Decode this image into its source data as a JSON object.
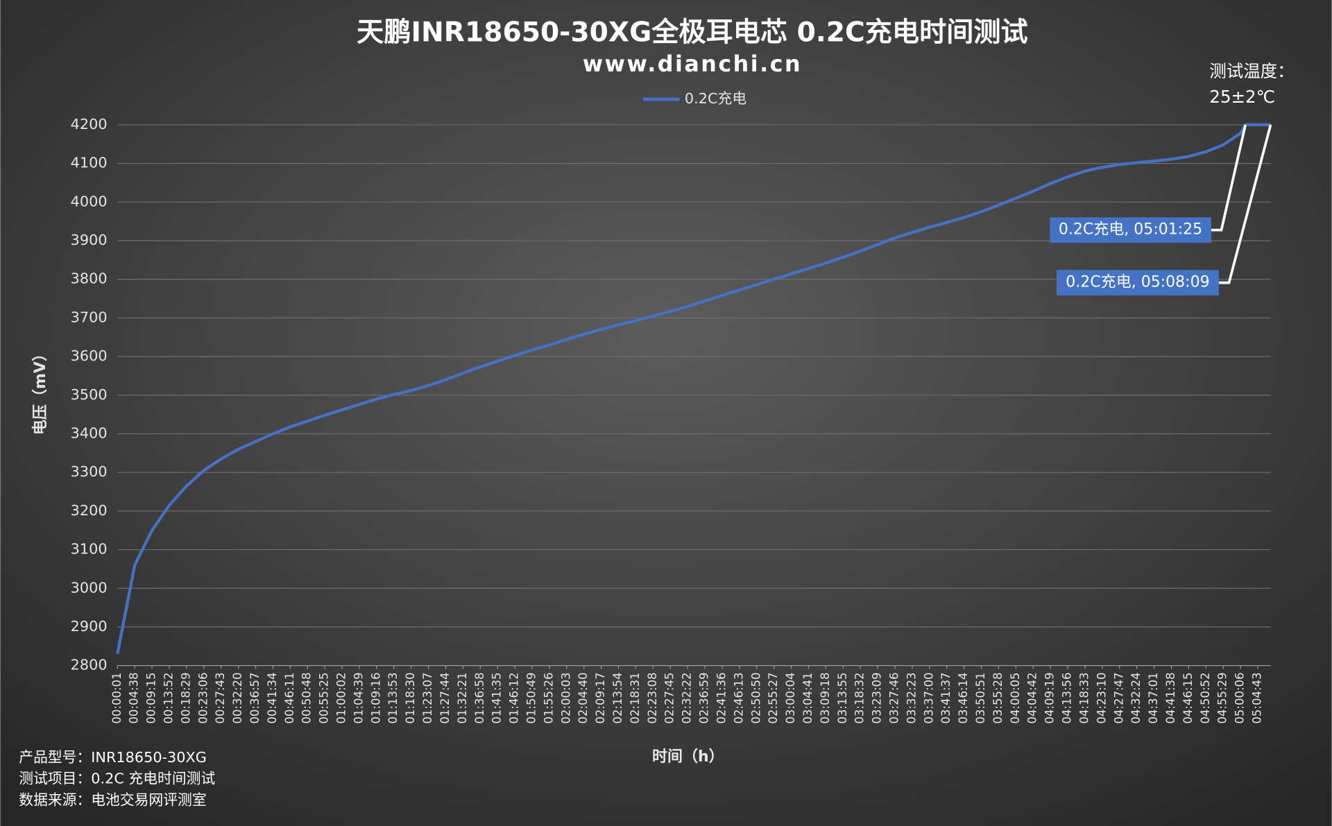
{
  "chart_data": {
    "type": "line",
    "title": "天鹏INR18650-30XG全极耳电芯 0.2C充电时间测试",
    "subtitle": "www.dianchi.cn",
    "temperature_label": "测试温度：",
    "temperature_value": "25±2℃",
    "x_label": "时间（h）",
    "y_label": "电压（mV）",
    "footer": [
      "产品型号：INR18650-30XG",
      "测试项目：0.2C 充电时间测试",
      "数据来源：电池交易网评测室"
    ],
    "legend": "top",
    "grid": true,
    "ylim": [
      2800,
      4200
    ],
    "yticks": [
      2800,
      2900,
      3000,
      3100,
      3200,
      3300,
      3400,
      3500,
      3600,
      3700,
      3800,
      3900,
      4000,
      4100,
      4200
    ],
    "xlim": [
      "00:00:01",
      "05:08:09"
    ],
    "xticks": [
      "00:00:01",
      "00:04:38",
      "00:09:15",
      "00:13:52",
      "00:18:29",
      "00:23:06",
      "00:27:43",
      "00:32:20",
      "00:36:57",
      "00:41:34",
      "00:46:11",
      "00:50:48",
      "00:55:25",
      "01:00:02",
      "01:04:39",
      "01:09:16",
      "01:13:53",
      "01:18:30",
      "01:23:07",
      "01:27:44",
      "01:32:21",
      "01:36:58",
      "01:41:35",
      "01:46:12",
      "01:50:49",
      "01:55:26",
      "02:00:03",
      "02:04:40",
      "02:09:17",
      "02:13:54",
      "02:18:31",
      "02:23:08",
      "02:27:45",
      "02:32:22",
      "02:36:59",
      "02:41:36",
      "02:46:13",
      "02:50:50",
      "02:55:27",
      "03:00:04",
      "03:04:41",
      "03:09:18",
      "03:13:55",
      "03:18:32",
      "03:23:09",
      "03:27:46",
      "03:32:23",
      "03:37:00",
      "03:41:37",
      "03:46:14",
      "03:50:51",
      "03:55:28",
      "04:00:05",
      "04:04:42",
      "04:09:19",
      "04:13:56",
      "04:18:33",
      "04:23:10",
      "04:27:47",
      "04:32:24",
      "04:37:01",
      "04:41:38",
      "04:46:15",
      "04:50:52",
      "04:55:29",
      "05:00:06",
      "05:04:43"
    ],
    "x": [
      "00:00:01",
      "00:04:38",
      "00:09:15",
      "00:13:52",
      "00:18:29",
      "00:23:06",
      "00:27:43",
      "00:32:20",
      "00:36:57",
      "00:41:34",
      "00:46:11",
      "00:50:48",
      "00:55:25",
      "01:00:02",
      "01:04:39",
      "01:09:16",
      "01:13:53",
      "01:18:30",
      "01:23:07",
      "01:27:44",
      "01:32:21",
      "01:36:58",
      "01:41:35",
      "01:46:12",
      "01:50:49",
      "01:55:26",
      "02:00:03",
      "02:04:40",
      "02:09:17",
      "02:13:54",
      "02:18:31",
      "02:23:08",
      "02:27:45",
      "02:32:22",
      "02:36:59",
      "02:41:36",
      "02:46:13",
      "02:50:50",
      "02:55:27",
      "03:00:04",
      "03:04:41",
      "03:09:18",
      "03:13:55",
      "03:18:32",
      "03:23:09",
      "03:27:46",
      "03:32:23",
      "03:37:00",
      "03:41:37",
      "03:46:14",
      "03:50:51",
      "03:55:28",
      "04:00:05",
      "04:04:42",
      "04:09:19",
      "04:13:56",
      "04:18:33",
      "04:23:10",
      "04:27:47",
      "04:32:24",
      "04:37:01",
      "04:41:38",
      "04:46:15",
      "04:50:52",
      "04:55:29",
      "05:00:06",
      "05:01:25",
      "05:04:43",
      "05:08:09"
    ],
    "series": [
      {
        "name": "0.2C充电",
        "color": "#4472c4",
        "values": [
          2830,
          3060,
          3150,
          3215,
          3265,
          3305,
          3335,
          3360,
          3380,
          3400,
          3418,
          3433,
          3448,
          3462,
          3476,
          3490,
          3502,
          3512,
          3525,
          3540,
          3557,
          3573,
          3588,
          3603,
          3617,
          3630,
          3644,
          3658,
          3670,
          3682,
          3693,
          3705,
          3717,
          3730,
          3744,
          3758,
          3772,
          3786,
          3800,
          3814,
          3828,
          3842,
          3857,
          3873,
          3890,
          3907,
          3921,
          3935,
          3947,
          3960,
          3975,
          3992,
          4010,
          4028,
          4048,
          4065,
          4080,
          4090,
          4097,
          4102,
          4106,
          4111,
          4118,
          4130,
          4148,
          4178,
          4200,
          4200,
          4200
        ]
      }
    ],
    "annotations": [
      "0.2C充电, 05:01:25",
      "0.2C充电, 05:08:09"
    ]
  }
}
